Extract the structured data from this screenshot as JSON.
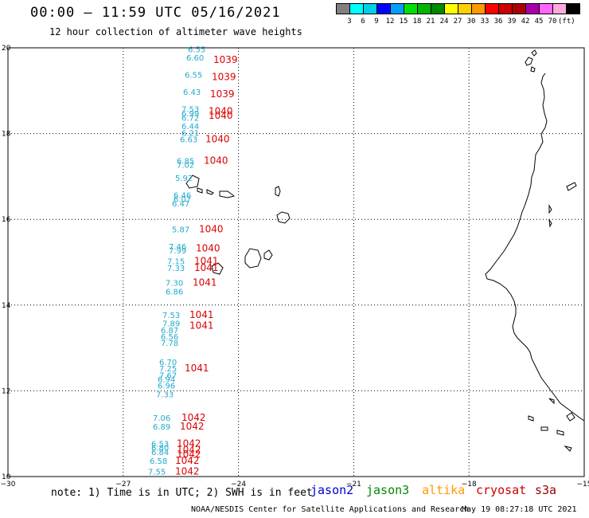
{
  "title": "00:00 – 11:59 UTC 05/16/2021",
  "subtitle": "12 hour collection of altimeter wave heights",
  "legend": {
    "colors": [
      "#808080",
      "#00ffff",
      "#00cfe8",
      "#0000ff",
      "#00a0ff",
      "#00e000",
      "#00b400",
      "#008800",
      "#ffff00",
      "#ffcf00",
      "#ff9900",
      "#ff0000",
      "#cc0000",
      "#aa0000",
      "#aa00aa",
      "#ff66ff",
      "#ffaadd",
      "#000000"
    ],
    "ticks": [
      "3",
      "6",
      "9",
      "12",
      "15",
      "18",
      "21",
      "24",
      "27",
      "30",
      "33",
      "36",
      "39",
      "42",
      "45",
      "70",
      "(ft)"
    ]
  },
  "axes": {
    "lon_ticks": [
      "−30",
      "−27",
      "−24",
      "−21",
      "−18",
      "−15"
    ],
    "lat_ticks": [
      "20",
      "18",
      "16",
      "14",
      "12",
      "10"
    ]
  },
  "chart_data": {
    "type": "scatter",
    "xlim": [
      -30,
      -15
    ],
    "ylim": [
      10,
      20
    ],
    "swh_points": [
      {
        "lat": 19.9,
        "value": "6.55"
      },
      {
        "lat": 19.7,
        "value": "6.60"
      },
      {
        "lat": 19.3,
        "value": "6.55"
      },
      {
        "lat": 18.9,
        "value": "6.43"
      },
      {
        "lat": 18.5,
        "value": "7.53"
      },
      {
        "lat": 18.4,
        "value": "6.99"
      },
      {
        "lat": 18.3,
        "value": "6.72"
      },
      {
        "lat": 18.1,
        "value": "6.44"
      },
      {
        "lat": 17.95,
        "value": "6.21"
      },
      {
        "lat": 17.8,
        "value": "6.63"
      },
      {
        "lat": 17.3,
        "value": "6.85"
      },
      {
        "lat": 17.2,
        "value": "7.02"
      },
      {
        "lat": 16.9,
        "value": "5.92"
      },
      {
        "lat": 16.5,
        "value": "6.46"
      },
      {
        "lat": 16.4,
        "value": "6.07"
      },
      {
        "lat": 16.3,
        "value": "6.47"
      },
      {
        "lat": 15.7,
        "value": "5.87"
      },
      {
        "lat": 15.3,
        "value": "7.46"
      },
      {
        "lat": 15.2,
        "value": "7.99"
      },
      {
        "lat": 14.95,
        "value": "7.15"
      },
      {
        "lat": 14.8,
        "value": "7.33"
      },
      {
        "lat": 14.45,
        "value": "7.30"
      },
      {
        "lat": 14.25,
        "value": "6.86"
      },
      {
        "lat": 13.7,
        "value": "7.53"
      },
      {
        "lat": 13.5,
        "value": "7.89"
      },
      {
        "lat": 13.35,
        "value": "6.87"
      },
      {
        "lat": 13.2,
        "value": "6.56"
      },
      {
        "lat": 13.05,
        "value": "7.78"
      },
      {
        "lat": 12.6,
        "value": "6.70"
      },
      {
        "lat": 12.45,
        "value": "7.25"
      },
      {
        "lat": 12.3,
        "value": "7.67"
      },
      {
        "lat": 12.2,
        "value": "6.94"
      },
      {
        "lat": 12.05,
        "value": "6.96"
      },
      {
        "lat": 11.85,
        "value": "7.33"
      },
      {
        "lat": 11.3,
        "value": "7.06"
      },
      {
        "lat": 11.1,
        "value": "6.89"
      },
      {
        "lat": 10.7,
        "value": "6.53"
      },
      {
        "lat": 10.6,
        "value": "6.80"
      },
      {
        "lat": 10.5,
        "value": "6.84"
      },
      {
        "lat": 10.3,
        "value": "6.58"
      },
      {
        "lat": 10.05,
        "value": "7.55"
      }
    ],
    "track_labels": [
      {
        "lat": 19.65,
        "value": "1039"
      },
      {
        "lat": 19.25,
        "value": "1039"
      },
      {
        "lat": 18.85,
        "value": "1039"
      },
      {
        "lat": 18.45,
        "value": "1040"
      },
      {
        "lat": 18.35,
        "value": "1040"
      },
      {
        "lat": 17.8,
        "value": "1040"
      },
      {
        "lat": 17.3,
        "value": "1040"
      },
      {
        "lat": 15.7,
        "value": "1040"
      },
      {
        "lat": 15.25,
        "value": "1040"
      },
      {
        "lat": 14.95,
        "value": "1041"
      },
      {
        "lat": 14.8,
        "value": "1041"
      },
      {
        "lat": 14.45,
        "value": "1041"
      },
      {
        "lat": 13.7,
        "value": "1041"
      },
      {
        "lat": 13.45,
        "value": "1041"
      },
      {
        "lat": 12.45,
        "value": "1041"
      },
      {
        "lat": 11.3,
        "value": "1042"
      },
      {
        "lat": 11.1,
        "value": "1042"
      },
      {
        "lat": 10.7,
        "value": "1042"
      },
      {
        "lat": 10.55,
        "value": "1042"
      },
      {
        "lat": 10.45,
        "value": "1042"
      },
      {
        "lat": 10.3,
        "value": "1042"
      },
      {
        "lat": 10.05,
        "value": "1042"
      }
    ]
  },
  "footer": {
    "note": "note: 1) Time is in UTC; 2) SWH is in feet",
    "satellites": [
      {
        "name": "jason2",
        "color": "#0000cc"
      },
      {
        "name": "jason3",
        "color": "#008800"
      },
      {
        "name": "altika",
        "color": "#ff9900"
      },
      {
        "name": "cryosat",
        "color": "#cc0000"
      },
      {
        "name": "s3a",
        "color": "#990000"
      }
    ],
    "credit": "NOAA/NESDIS Center for Satellite Applications and Research",
    "timestamp": "May 19 08:27:18 UTC 2021"
  }
}
